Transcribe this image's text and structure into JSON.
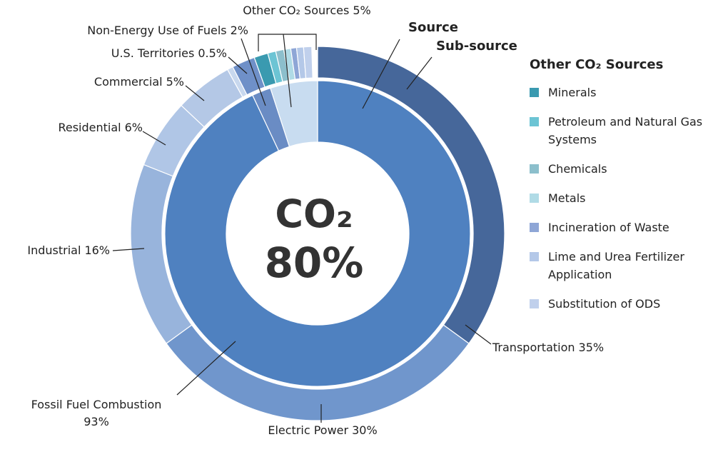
{
  "chart_data": {
    "type": "nested-donut",
    "center_title": "CO₂",
    "center_subtitle": "80%",
    "series": [
      {
        "name": "Source",
        "categories": [
          "Fossil Fuel Combustion",
          "Non-Energy Use of Fuels",
          "Other CO₂ Sources"
        ],
        "values": [
          93,
          2,
          5
        ],
        "value_labels": [
          "93%",
          "2%",
          "5%"
        ],
        "colors": [
          "#4f81c0",
          "#6a8cc4",
          "#c8dcf0"
        ]
      },
      {
        "name": "Sub-source",
        "categories": [
          "Transportation",
          "Electric Power",
          "Industrial",
          "Residential",
          "Commercial",
          "U.S. Territories",
          null,
          "Minerals",
          "Petroleum and Natural Gas Systems",
          "Chemicals",
          "Metals",
          "Incineration of Waste",
          "Lime and Urea Fertilizer Application",
          "Substitution of ODS"
        ],
        "values": [
          35,
          30,
          16,
          6,
          5,
          0.5,
          2,
          1.2,
          0.7,
          0.7,
          0.6,
          0.5,
          0.6,
          0.7
        ],
        "value_labels": [
          "35%",
          "30%",
          "16%",
          "6%",
          "5%",
          "0.5%",
          null,
          null,
          null,
          null,
          null,
          null,
          null,
          null
        ],
        "colors": [
          "#46679a",
          "#7096cc",
          "#98b4dc",
          "#b0c6e6",
          "#b4c8e6",
          "#c8d8ee",
          "#6f90c8",
          "#3a9ab0",
          "#6cc4d4",
          "#8cbfcc",
          "#b0dbe6",
          "#8ea6d6",
          "#b4c8e8",
          "#c0d0ec"
        ]
      }
    ],
    "legend_title_category": 2,
    "legend_corner": "right"
  }
}
